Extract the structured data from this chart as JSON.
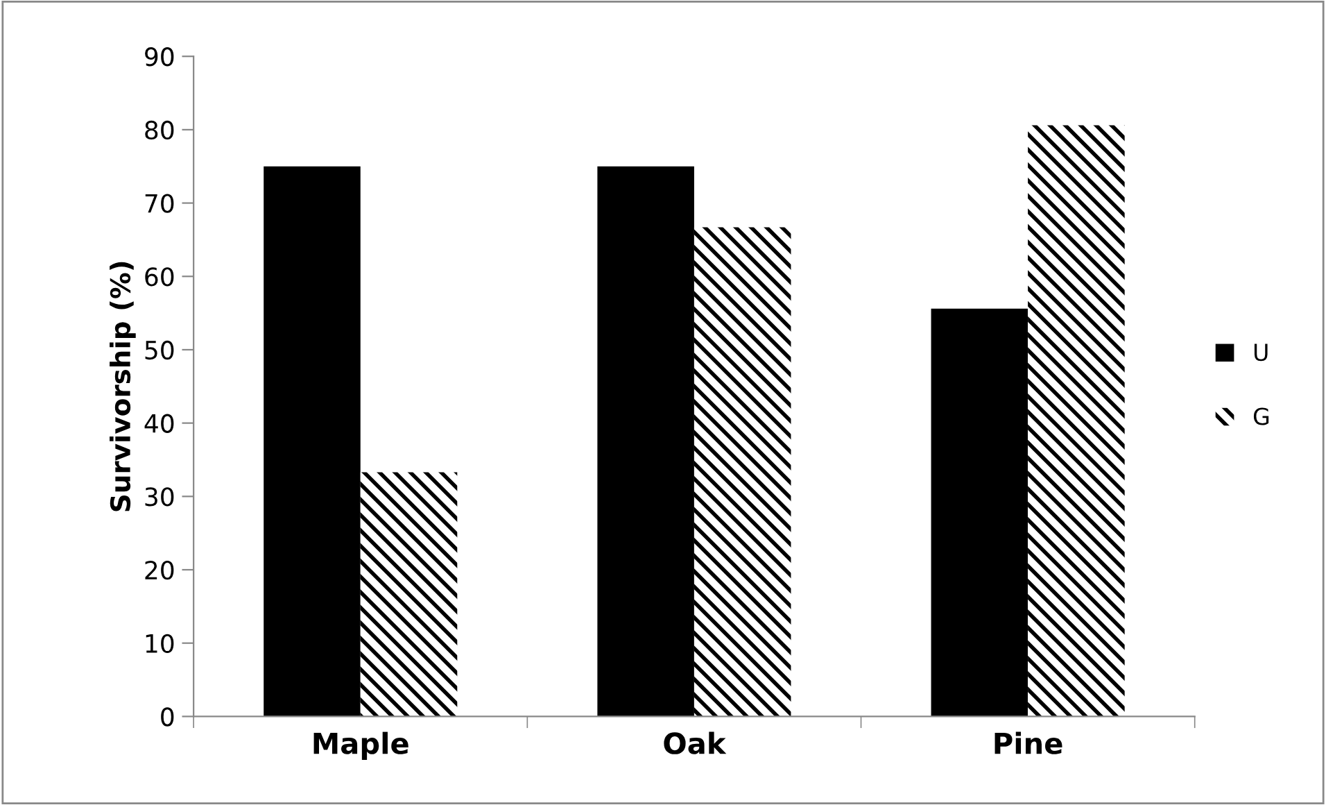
{
  "chart_data": {
    "type": "bar",
    "ylabel": "Survivorship (%)",
    "categories": [
      "Maple",
      "Oak",
      "Pine"
    ],
    "series": [
      {
        "name": "U",
        "color": "#000000",
        "values": [
          75,
          75,
          55.6
        ]
      },
      {
        "name": "G",
        "color": "#000000",
        "values": [
          33.3,
          66.7,
          80.6
        ]
      }
    ],
    "ylim": [
      0,
      90
    ],
    "yticks": [
      0,
      10,
      20,
      30,
      40,
      50,
      60,
      70,
      80,
      90
    ],
    "grid": false,
    "legend": "right"
  }
}
